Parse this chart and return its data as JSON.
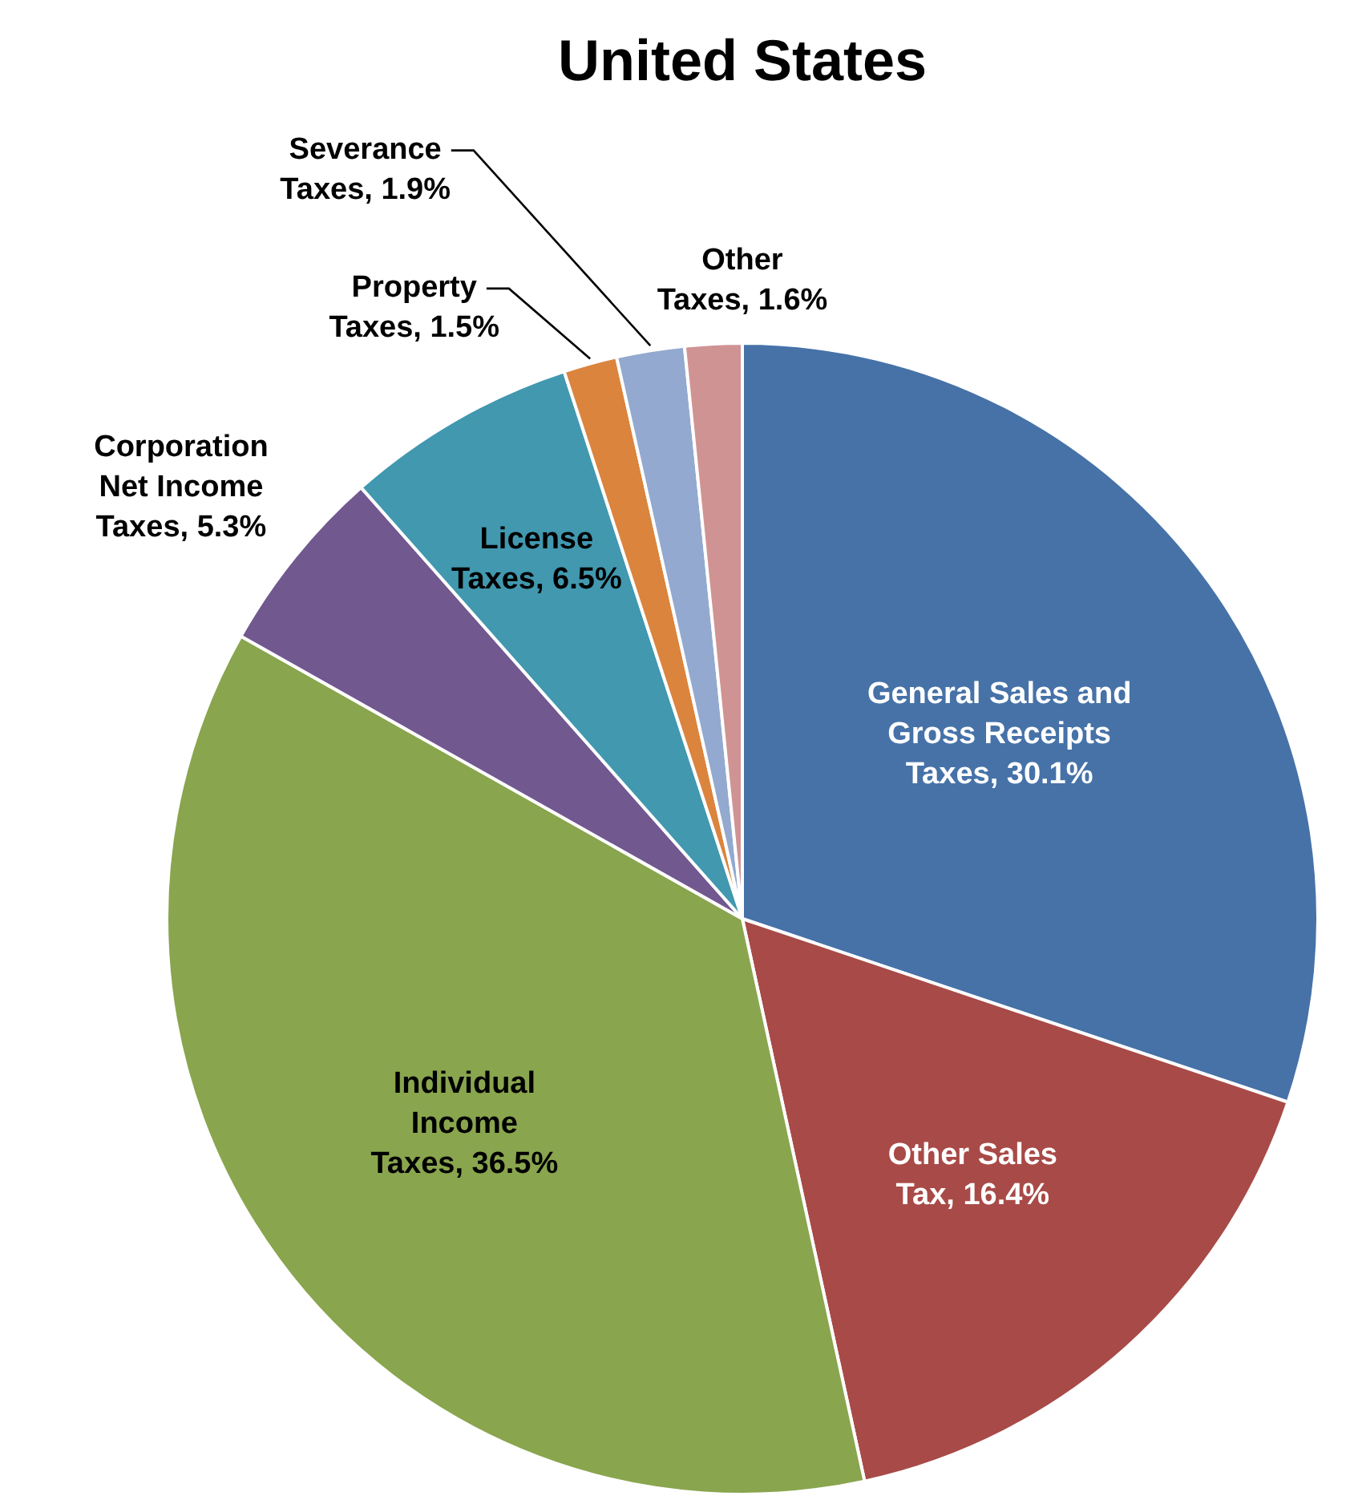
{
  "chart_data": {
    "type": "pie",
    "title": "United States",
    "categories": [
      "General Sales and Gross Receipts Taxes",
      "Other Sales Tax",
      "Individual Income Taxes",
      "Corporation Net Income Taxes",
      "License Taxes",
      "Property Taxes",
      "Severance Taxes",
      "Other Taxes"
    ],
    "values": [
      30.1,
      16.4,
      36.5,
      5.3,
      6.5,
      1.5,
      1.9,
      1.6
    ],
    "value_labels": [
      "30.1%",
      "16.4%",
      "36.5%",
      "5.3%",
      "6.5%",
      "1.5%",
      "1.9%",
      "1.6%"
    ],
    "colors": [
      "#4672a8",
      "#a84a47",
      "#89a54e",
      "#71588f",
      "#4198af",
      "#db843d",
      "#93a9cf",
      "#d09393"
    ]
  }
}
